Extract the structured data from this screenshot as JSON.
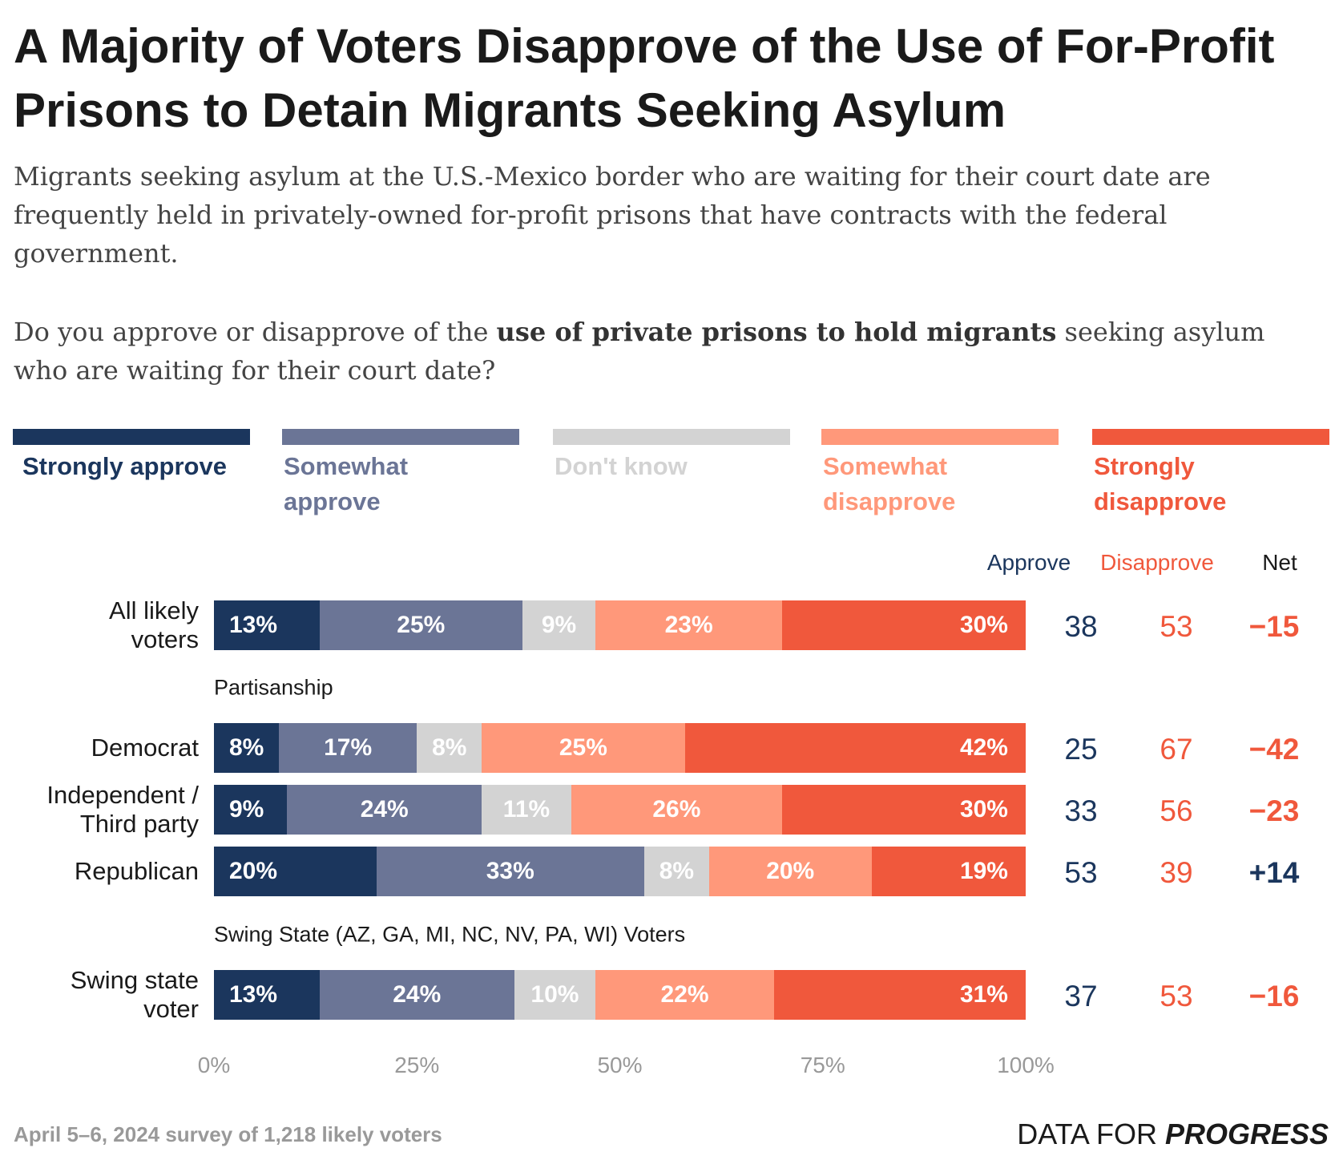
{
  "chart_data": {
    "type": "stacked-bar",
    "title": "A Majority of Voters Disapprove of the Use of For-Profit Prisons to Detain Migrants Seeking Asylum",
    "subtitle": "Migrants seeking asylum at the U.S.-Mexico border who are waiting for their court date are frequently held in privately-owned for-profit prisons that have contracts with the federal government.",
    "question": [
      "Do you approve or disapprove of the ",
      "use of private prisons to hold migrants",
      " seeking asylum who are waiting for their court date?"
    ],
    "categories": [
      "All likely\nvoters",
      "Democrat",
      "Independent /\nThird party",
      "Republican",
      "Swing state\nvoter"
    ],
    "category_groups": [
      null,
      "Partisanship",
      null,
      null,
      "Swing State (AZ, GA, MI, NC, NV, PA, WI) Voters"
    ],
    "series": [
      {
        "name": "Strongly approve",
        "color": "#1b365d",
        "label_color": "#1b365d",
        "values": [
          13,
          8,
          9,
          20,
          13
        ],
        "value_labels": [
          "13%",
          "8%",
          "9%",
          "20%",
          "13%"
        ]
      },
      {
        "name": "Somewhat\napprove",
        "color": "#6b7596",
        "label_color": "#6b7596",
        "values": [
          25,
          17,
          24,
          33,
          24
        ],
        "value_labels": [
          "25%",
          "17%",
          "24%",
          "33%",
          "24%"
        ]
      },
      {
        "name": "Don't know",
        "color": "#d3d3d3",
        "label_color": "#d3d3d3",
        "values": [
          9,
          8,
          11,
          8,
          10
        ],
        "value_labels": [
          "9%",
          "8%",
          "11%",
          "8%",
          "10%"
        ]
      },
      {
        "name": "Somewhat\ndisapprove",
        "color": "#ff987a",
        "label_color": "#ff987a",
        "values": [
          23,
          25,
          26,
          20,
          22
        ],
        "value_labels": [
          "23%",
          "25%",
          "26%",
          "20%",
          "22%"
        ]
      },
      {
        "name": "Strongly\ndisapprove",
        "color": "#f0583c",
        "label_color": "#f0583c",
        "values": [
          30,
          42,
          30,
          19,
          31
        ],
        "value_labels": [
          "30%",
          "42%",
          "30%",
          "19%",
          "31%"
        ]
      }
    ],
    "xlim": [
      0,
      100
    ],
    "xticks": [
      {
        "value": 0,
        "label": "0%"
      },
      {
        "value": 25,
        "label": "25%"
      },
      {
        "value": 50,
        "label": "50%"
      },
      {
        "value": 75,
        "label": "75%"
      },
      {
        "value": 100,
        "label": "100%"
      }
    ],
    "summary": [
      {
        "name": "Approve",
        "color": "#1b365d",
        "values": [
          38,
          25,
          33,
          53,
          37
        ]
      },
      {
        "name": "Disapprove",
        "color": "#f0583c",
        "values": [
          53,
          67,
          56,
          39,
          53
        ]
      },
      {
        "name": "Net",
        "color": "#1a1a1a",
        "negative_color": "#f0583c",
        "positive_color": "#1b365d",
        "values": [
          -15,
          -42,
          -23,
          14,
          -16
        ],
        "value_labels": [
          "−15",
          "−42",
          "−23",
          "+14",
          "−16"
        ]
      }
    ],
    "source": "April 5–6, 2024 survey of 1,218 likely voters",
    "logo": [
      "DATA FOR ",
      "PROGRESS"
    ]
  }
}
